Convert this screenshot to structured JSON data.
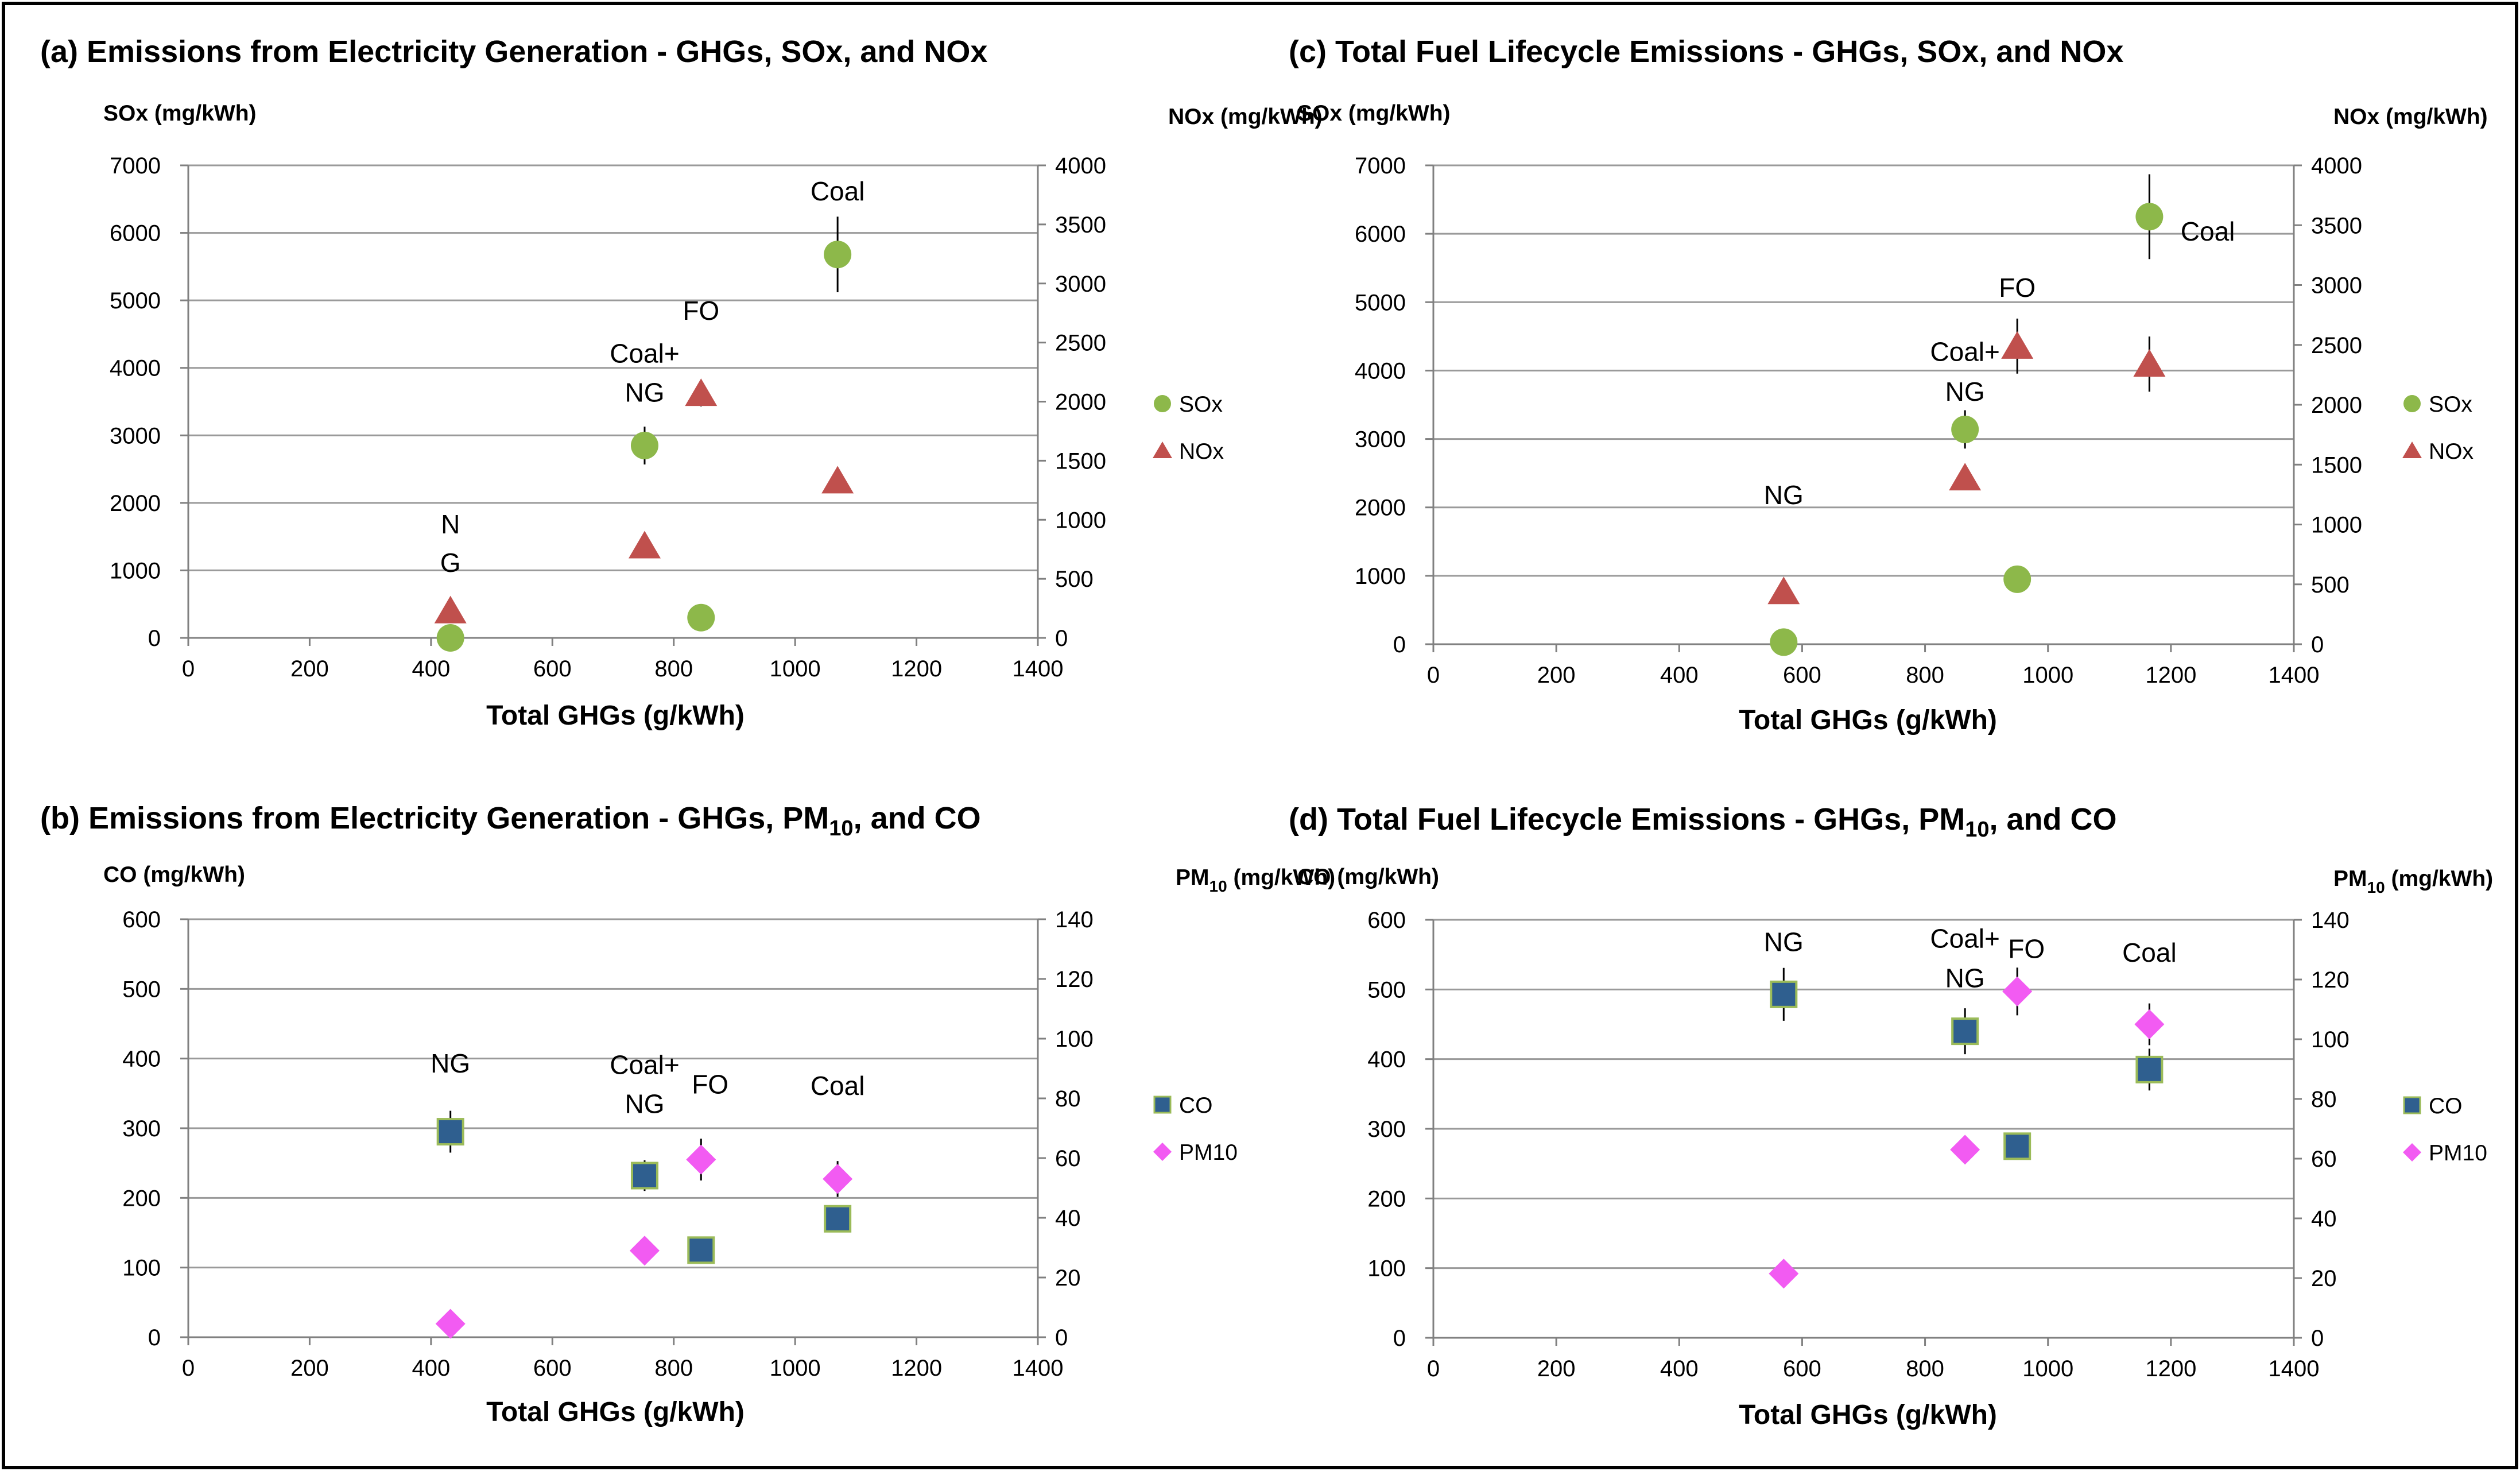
{
  "colors": {
    "sox": "#8DB84A",
    "nox": "#C0504D",
    "co": "#2F5F8F",
    "co_edge": "#9BBB59",
    "pm10": "#F25BF2",
    "grid": "#9A9A9A",
    "axis": "#808080",
    "frame": "#000000"
  },
  "chart_data": [
    {
      "id": "a",
      "type": "scatter",
      "title": "(a) Emissions from Electricity Generation - GHGs, SOx, and NOx",
      "title_sub": "",
      "title_tail": "",
      "xlabel": "Total GHGs  (g/kWh)",
      "ylabel_left": "SOx (mg/kWh)",
      "ylabel_left_sub": "",
      "ylabel_left_tail": "",
      "ylabel_right": "NOx (mg/kWh)",
      "ylabel_right_sub": "",
      "ylabel_right_tail": "",
      "xlim": [
        0,
        1400
      ],
      "x_step": 200,
      "ylim_left": [
        0,
        7000
      ],
      "y_left_step": 1000,
      "ylim_right": [
        0,
        4000
      ],
      "y_right_step": 500,
      "grid": true,
      "legend_position": "right",
      "series": [
        {
          "name": "SOx",
          "axis": "left",
          "marker": "circle",
          "color_key": "sox",
          "x": [
            432,
            845,
            752,
            1070
          ],
          "y": [
            0,
            300,
            2850,
            5680
          ],
          "err": [
            0,
            0,
            280,
            560
          ]
        },
        {
          "name": "NOx",
          "axis": "right",
          "marker": "triangle",
          "color_key": "nox",
          "x": [
            432,
            752,
            845,
            1070
          ],
          "y": [
            230,
            780,
            2070,
            1330
          ],
          "err": [
            0,
            0,
            110,
            0
          ]
        }
      ],
      "annotations": [
        {
          "text": "N",
          "x": 432,
          "y": 1550,
          "axis": "left"
        },
        {
          "text": "G",
          "x": 432,
          "y": 980,
          "axis": "left"
        },
        {
          "text": "Coal+",
          "x": 752,
          "y": 4080,
          "axis": "left"
        },
        {
          "text": "NG",
          "x": 752,
          "y": 3500,
          "axis": "left"
        },
        {
          "text": "FO",
          "x": 845,
          "y": 4710,
          "axis": "left"
        },
        {
          "text": "Coal",
          "x": 1070,
          "y": 6480,
          "axis": "left"
        }
      ]
    },
    {
      "id": "b",
      "type": "scatter",
      "title": "(b) Emissions from Electricity Generation - GHGs, PM",
      "title_sub": "10",
      "title_tail": ", and CO",
      "xlabel": "Total GHGs  (g/kWh)",
      "ylabel_left": "CO (mg/kWh)",
      "ylabel_left_sub": "",
      "ylabel_left_tail": "",
      "ylabel_right": "PM",
      "ylabel_right_sub": "10",
      "ylabel_right_tail": " (mg/kWh)",
      "xlim": [
        0,
        1400
      ],
      "x_step": 200,
      "ylim_left": [
        0,
        600
      ],
      "y_left_step": 100,
      "ylim_right": [
        0,
        140
      ],
      "y_right_step": 20,
      "grid": true,
      "legend_position": "right",
      "series": [
        {
          "name": "CO",
          "axis": "left",
          "marker": "square",
          "color_key": "co",
          "x": [
            432,
            752,
            845,
            1070
          ],
          "y": [
            295,
            232,
            125,
            170
          ],
          "err": [
            30,
            22,
            0,
            0
          ]
        },
        {
          "name": "PM10",
          "axis": "right",
          "marker": "diamond",
          "color_key": "pm10",
          "x": [
            432,
            752,
            845,
            1070
          ],
          "y": [
            4.5,
            29,
            59.5,
            53
          ],
          "err": [
            0,
            0,
            7,
            6
          ]
        }
      ],
      "annotations": [
        {
          "text": "NG",
          "x": 432,
          "y": 380,
          "axis": "left"
        },
        {
          "text": "Coal+",
          "x": 752,
          "y": 378,
          "axis": "left"
        },
        {
          "text": "NG",
          "x": 752,
          "y": 322,
          "axis": "left"
        },
        {
          "text": "FO",
          "x": 860,
          "y": 350,
          "axis": "left"
        },
        {
          "text": "Coal",
          "x": 1070,
          "y": 348,
          "axis": "left"
        }
      ]
    },
    {
      "id": "c",
      "type": "scatter",
      "title": "(c) Total Fuel Lifecycle Emissions - GHGs, SOx, and NOx",
      "title_sub": "",
      "title_tail": "",
      "xlabel": "Total GHGs  (g/kWh)",
      "ylabel_left": "SOx (mg/kWh)",
      "ylabel_left_sub": "",
      "ylabel_left_tail": "",
      "ylabel_right": "NOx (mg/kWh)",
      "ylabel_right_sub": "",
      "ylabel_right_tail": "",
      "xlim": [
        0,
        1400
      ],
      "x_step": 200,
      "ylim_left": [
        0,
        7000
      ],
      "y_left_step": 1000,
      "ylim_right": [
        0,
        4000
      ],
      "y_right_step": 500,
      "grid": true,
      "legend_position": "right",
      "series": [
        {
          "name": "SOx",
          "axis": "left",
          "marker": "circle",
          "color_key": "sox",
          "x": [
            570,
            950,
            865,
            1165
          ],
          "y": [
            30,
            950,
            3140,
            6250
          ],
          "err": [
            0,
            0,
            280,
            620
          ]
        },
        {
          "name": "NOx",
          "axis": "right",
          "marker": "triangle",
          "color_key": "nox",
          "x": [
            570,
            865,
            950,
            1165
          ],
          "y": [
            440,
            1390,
            2490,
            2340
          ],
          "err": [
            0,
            0,
            230,
            230
          ]
        }
      ],
      "annotations": [
        {
          "text": "NG",
          "x": 570,
          "y": 2050,
          "axis": "left"
        },
        {
          "text": "Coal+",
          "x": 865,
          "y": 4140,
          "axis": "left"
        },
        {
          "text": "NG",
          "x": 865,
          "y": 3560,
          "axis": "left"
        },
        {
          "text": "FO",
          "x": 950,
          "y": 5080,
          "axis": "left"
        },
        {
          "text": "Coal",
          "x": 1260,
          "y": 5900,
          "axis": "left"
        }
      ]
    },
    {
      "id": "d",
      "type": "scatter",
      "title": "(d) Total Fuel Lifecycle Emissions - GHGs, PM",
      "title_sub": "10",
      "title_tail": ", and CO",
      "xlabel": "Total GHGs  (g/kWh)",
      "ylabel_left": "CO (mg/kWh)",
      "ylabel_left_sub": "",
      "ylabel_left_tail": "",
      "ylabel_right": "PM",
      "ylabel_right_sub": "10",
      "ylabel_right_tail": " (mg/kWh)",
      "xlim": [
        0,
        1400
      ],
      "x_step": 200,
      "ylim_left": [
        0,
        600
      ],
      "y_left_step": 100,
      "ylim_right": [
        0,
        140
      ],
      "y_right_step": 20,
      "grid": true,
      "legend_position": "right",
      "series": [
        {
          "name": "CO",
          "axis": "left",
          "marker": "square",
          "color_key": "co",
          "x": [
            570,
            865,
            950,
            1165
          ],
          "y": [
            493,
            440,
            275,
            385
          ],
          "err": [
            38,
            33,
            18,
            30
          ]
        },
        {
          "name": "PM10",
          "axis": "right",
          "marker": "diamond",
          "color_key": "pm10",
          "x": [
            570,
            865,
            950,
            1165
          ],
          "y": [
            21.5,
            63,
            116,
            105
          ],
          "err": [
            0,
            0,
            8,
            7
          ]
        }
      ],
      "annotations": [
        {
          "text": "NG",
          "x": 570,
          "y": 555,
          "axis": "left"
        },
        {
          "text": "Coal+",
          "x": 865,
          "y": 560,
          "axis": "left"
        },
        {
          "text": "NG",
          "x": 865,
          "y": 503,
          "axis": "left"
        },
        {
          "text": "FO",
          "x": 965,
          "y": 545,
          "axis": "left"
        },
        {
          "text": "Coal",
          "x": 1165,
          "y": 540,
          "axis": "left"
        }
      ]
    }
  ]
}
